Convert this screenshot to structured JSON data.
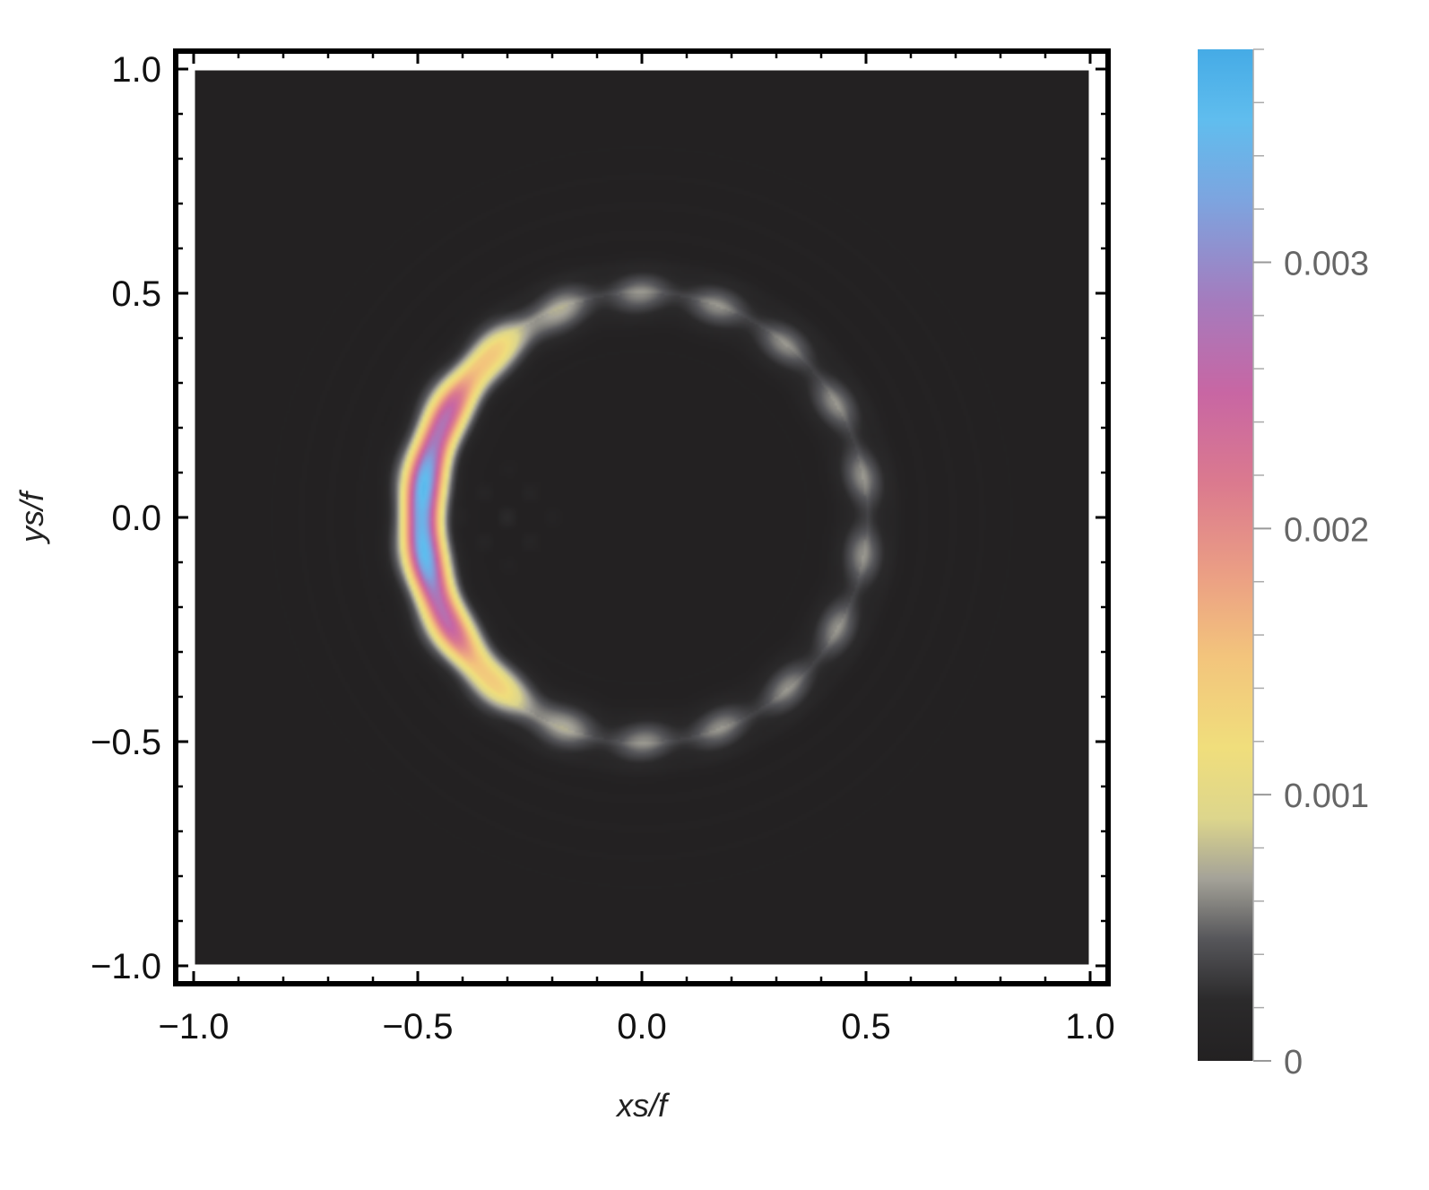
{
  "chart_data": {
    "type": "heatmap",
    "xlabel": "xs/f",
    "ylabel": "ys/f",
    "xlim": [
      -1.0,
      1.0
    ],
    "ylim": [
      -1.0,
      1.0
    ],
    "x_ticks": [
      {
        "value": -1.0,
        "label": "−1.0"
      },
      {
        "value": -0.5,
        "label": "−0.5"
      },
      {
        "value": 0.0,
        "label": "0.0"
      },
      {
        "value": 0.5,
        "label": "0.5"
      },
      {
        "value": 1.0,
        "label": "1.0"
      }
    ],
    "y_ticks": [
      {
        "value": 1.0,
        "label": "1.0"
      },
      {
        "value": 0.5,
        "label": "0.5"
      },
      {
        "value": 0.0,
        "label": "0.0"
      },
      {
        "value": -0.5,
        "label": "−0.5"
      },
      {
        "value": -1.0,
        "label": "−1.0"
      }
    ],
    "grid": false,
    "background_value": 0,
    "features": {
      "ring": {
        "center": [
          0.0,
          0.0
        ],
        "radius": 0.5,
        "baseline_value": 0.0006
      },
      "crescent_peak": {
        "x": -0.5,
        "y": 0.0,
        "value": 0.0037
      },
      "crescent_side": "left"
    },
    "colorbar": {
      "min": 0,
      "max": 0.0038,
      "ticks": [
        {
          "value": 0,
          "label": "0"
        },
        {
          "value": 0.001,
          "label": "0.001"
        },
        {
          "value": 0.002,
          "label": "0.002"
        },
        {
          "value": 0.003,
          "label": "0.003"
        }
      ],
      "minor_step": 0.0002,
      "colors": [
        {
          "pos": 0.0,
          "color": "#232122"
        },
        {
          "pos": 0.06,
          "color": "#2b2a2b"
        },
        {
          "pos": 0.12,
          "color": "#56565a"
        },
        {
          "pos": 0.18,
          "color": "#a4a298"
        },
        {
          "pos": 0.24,
          "color": "#ddd68c"
        },
        {
          "pos": 0.31,
          "color": "#f0de7c"
        },
        {
          "pos": 0.4,
          "color": "#f3c47c"
        },
        {
          "pos": 0.48,
          "color": "#eb9f84"
        },
        {
          "pos": 0.57,
          "color": "#db7a8e"
        },
        {
          "pos": 0.66,
          "color": "#c866a3"
        },
        {
          "pos": 0.75,
          "color": "#a57bbd"
        },
        {
          "pos": 0.85,
          "color": "#7da4df"
        },
        {
          "pos": 0.93,
          "color": "#60bdee"
        },
        {
          "pos": 1.0,
          "color": "#45abe6"
        }
      ]
    }
  }
}
